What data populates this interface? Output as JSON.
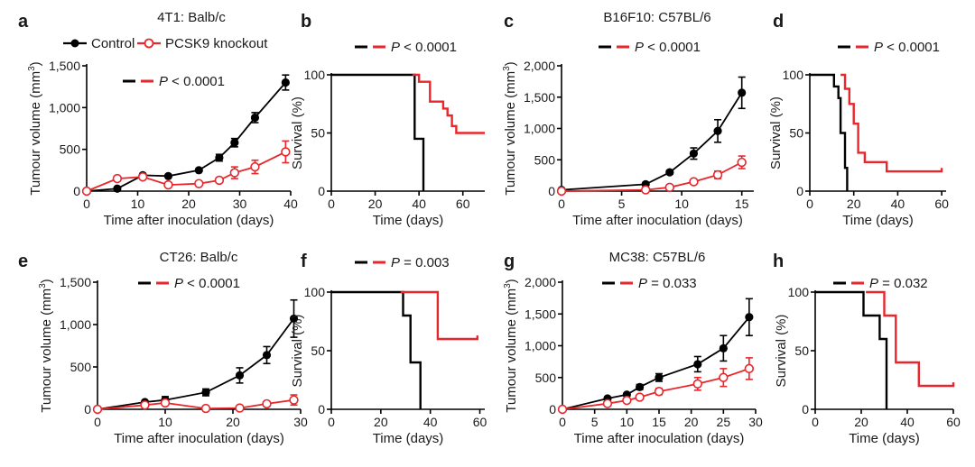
{
  "colors": {
    "control": "#000000",
    "knockout": "#e8262b"
  },
  "legend": {
    "control": "Control",
    "knockout": "PCSK9 knockout"
  },
  "chart_data": [
    {
      "panel": "a",
      "type": "line",
      "kind": "growth",
      "title": "4T1: Balb/c",
      "xlabel": "Time after inoculation (days)",
      "ylabel_main": "Tumour volume (mm",
      "ylabel_sup": "3",
      "ylabel_close": ")",
      "pvalue": "P < 0.0001",
      "xlim": [
        0,
        40
      ],
      "ylim": [
        0,
        1500
      ],
      "xticks": [
        0,
        10,
        20,
        30,
        40
      ],
      "xticklabels": [
        "0",
        "10",
        "20",
        "30",
        "40"
      ],
      "yticks": [
        0,
        500,
        1000,
        1500
      ],
      "yticklabels": [
        "0",
        "500",
        "1,000",
        "1,500"
      ],
      "series": [
        {
          "name": "Control",
          "x": [
            0,
            6,
            11,
            16,
            22,
            26,
            29,
            33,
            39
          ],
          "y": [
            0,
            30,
            190,
            180,
            250,
            400,
            580,
            880,
            1300
          ],
          "err": [
            0,
            0,
            10,
            10,
            15,
            40,
            50,
            60,
            90
          ]
        },
        {
          "name": "PCSK9 knockout",
          "x": [
            0,
            6,
            11,
            16,
            22,
            26,
            29,
            33,
            39
          ],
          "y": [
            0,
            150,
            170,
            75,
            90,
            130,
            220,
            290,
            470
          ],
          "err": [
            0,
            0,
            0,
            0,
            0,
            20,
            70,
            80,
            130
          ]
        }
      ]
    },
    {
      "panel": "b",
      "type": "line",
      "kind": "survival",
      "title": "",
      "xlabel": "Time (days)",
      "ylabel_main": "Survival (%)",
      "ylabel_sup": "",
      "ylabel_close": "",
      "pvalue": "P < 0.0001",
      "xlim": [
        0,
        70
      ],
      "ylim": [
        0,
        100
      ],
      "xticks": [
        0,
        20,
        40,
        60
      ],
      "xticklabels": [
        "0",
        "20",
        "40",
        "60"
      ],
      "yticks": [
        0,
        50,
        100
      ],
      "yticklabels": [
        "0",
        "50",
        "100"
      ],
      "series": [
        {
          "name": "Control",
          "x": [
            0,
            38,
            38,
            42,
            42
          ],
          "y": [
            100,
            100,
            45,
            45,
            0
          ]
        },
        {
          "name": "PCSK9 knockout",
          "x": [
            37,
            40,
            40,
            45,
            45,
            51,
            51,
            53,
            53,
            55,
            55,
            57,
            57,
            70
          ],
          "y": [
            100,
            100,
            94,
            94,
            77,
            77,
            71,
            71,
            65,
            65,
            56,
            56,
            50,
            50
          ]
        }
      ]
    },
    {
      "panel": "c",
      "type": "line",
      "kind": "growth",
      "title": "B16F10: C57BL/6",
      "xlabel": "Time after inoculation (days)",
      "ylabel_main": "Tumour volume (mm",
      "ylabel_sup": "3",
      "ylabel_close": ")",
      "pvalue": "P < 0.0001",
      "xlim": [
        0,
        16
      ],
      "ylim": [
        0,
        2000
      ],
      "xticks": [
        0,
        5,
        10,
        15
      ],
      "xticklabels": [
        "0",
        "5",
        "10",
        "15"
      ],
      "yticks": [
        0,
        500,
        1000,
        1500,
        2000
      ],
      "yticklabels": [
        "0",
        "500",
        "1,000",
        "1,500",
        "2,000"
      ],
      "series": [
        {
          "name": "Control",
          "x": [
            0,
            7,
            9,
            11,
            13,
            15
          ],
          "y": [
            20,
            110,
            300,
            600,
            960,
            1570
          ],
          "err": [
            0,
            10,
            30,
            90,
            180,
            250
          ]
        },
        {
          "name": "PCSK9 knockout",
          "x": [
            0,
            7,
            9,
            11,
            13,
            15
          ],
          "y": [
            0,
            20,
            60,
            150,
            260,
            460
          ],
          "err": [
            0,
            0,
            10,
            30,
            60,
            100
          ]
        }
      ]
    },
    {
      "panel": "d",
      "type": "line",
      "kind": "survival",
      "title": "",
      "xlabel": "Time (days)",
      "ylabel_main": "Survival (%)",
      "ylabel_sup": "",
      "ylabel_close": "",
      "pvalue": "P < 0.0001",
      "xlim": [
        0,
        62
      ],
      "ylim": [
        0,
        100
      ],
      "xticks": [
        0,
        20,
        40,
        60
      ],
      "xticklabels": [
        "0",
        "20",
        "40",
        "60"
      ],
      "yticks": [
        0,
        50,
        100
      ],
      "yticklabels": [
        "0",
        "50",
        "100"
      ],
      "series": [
        {
          "name": "Control",
          "x": [
            0,
            11,
            11,
            13,
            13,
            14,
            14,
            16,
            16,
            17,
            17
          ],
          "y": [
            100,
            100,
            90,
            90,
            80,
            80,
            50,
            50,
            20,
            20,
            0
          ]
        },
        {
          "name": "PCSK9 knockout",
          "x": [
            14,
            16,
            16,
            18,
            18,
            20,
            20,
            22,
            22,
            25,
            25,
            35,
            35,
            60,
            60
          ],
          "y": [
            100,
            100,
            88,
            88,
            75,
            75,
            58,
            58,
            33,
            33,
            25,
            25,
            17,
            17,
            20
          ]
        }
      ]
    },
    {
      "panel": "e",
      "type": "line",
      "kind": "growth",
      "title": "CT26: Balb/c",
      "xlabel": "Time after inoculation (days)",
      "ylabel_main": "Tumour volume (mm",
      "ylabel_sup": "3",
      "ylabel_close": ")",
      "pvalue": "P < 0.0001",
      "xlim": [
        0,
        30
      ],
      "ylim": [
        0,
        1500
      ],
      "xticks": [
        0,
        10,
        20,
        30
      ],
      "xticklabels": [
        "0",
        "10",
        "20",
        "30"
      ],
      "yticks": [
        0,
        500,
        1000,
        1500
      ],
      "yticklabels": [
        "0",
        "500",
        "1,000",
        "1,500"
      ],
      "series": [
        {
          "name": "Control",
          "x": [
            0,
            7,
            10,
            16,
            21,
            25,
            29
          ],
          "y": [
            0,
            85,
            110,
            200,
            400,
            640,
            1070
          ],
          "err": [
            0,
            10,
            40,
            40,
            90,
            100,
            220
          ]
        },
        {
          "name": "PCSK9 knockout",
          "x": [
            0,
            7,
            10,
            16,
            21,
            25,
            29
          ],
          "y": [
            0,
            50,
            75,
            10,
            15,
            65,
            110
          ],
          "err": [
            0,
            0,
            20,
            0,
            0,
            10,
            60
          ]
        }
      ]
    },
    {
      "panel": "f",
      "type": "line",
      "kind": "survival",
      "title": "",
      "xlabel": "Time (days)",
      "ylabel_main": "Survival (%)",
      "ylabel_sup": "",
      "ylabel_close": "",
      "pvalue": "P = 0.003",
      "xlim": [
        0,
        62
      ],
      "ylim": [
        0,
        100
      ],
      "xticks": [
        0,
        20,
        40,
        60
      ],
      "xticklabels": [
        "0",
        "20",
        "40",
        "60"
      ],
      "yticks": [
        0,
        50,
        100
      ],
      "yticklabels": [
        "0",
        "50",
        "100"
      ],
      "series": [
        {
          "name": "Control",
          "x": [
            0,
            29,
            29,
            32,
            32,
            36,
            36
          ],
          "y": [
            100,
            100,
            80,
            80,
            40,
            40,
            0
          ]
        },
        {
          "name": "PCSK9 knockout",
          "x": [
            28,
            43,
            43,
            59,
            59
          ],
          "y": [
            100,
            100,
            60,
            60,
            63
          ]
        }
      ]
    },
    {
      "panel": "g",
      "type": "line",
      "kind": "growth",
      "title": "MC38: C57BL/6",
      "xlabel": "Time after inoculation (days)",
      "ylabel_main": "Tumour volume (mm",
      "ylabel_sup": "3",
      "ylabel_close": ")",
      "pvalue": "P = 0.033",
      "xlim": [
        0,
        30
      ],
      "ylim": [
        0,
        2000
      ],
      "xticks": [
        0,
        5,
        10,
        15,
        20,
        25,
        30
      ],
      "xticklabels": [
        "0",
        "5",
        "10",
        "15",
        "20",
        "25",
        "30"
      ],
      "yticks": [
        0,
        500,
        1000,
        1500,
        2000
      ],
      "yticklabels": [
        "0",
        "500",
        "1,000",
        "1,500",
        "2,000"
      ],
      "series": [
        {
          "name": "Control",
          "x": [
            0,
            7,
            10,
            12,
            15,
            21,
            25,
            29
          ],
          "y": [
            0,
            170,
            230,
            350,
            500,
            710,
            960,
            1450
          ],
          "err": [
            0,
            20,
            20,
            40,
            60,
            120,
            200,
            290
          ]
        },
        {
          "name": "PCSK9 knockout",
          "x": [
            0,
            7,
            10,
            12,
            15,
            21,
            25,
            29
          ],
          "y": [
            0,
            90,
            140,
            190,
            280,
            400,
            500,
            640
          ],
          "err": [
            0,
            0,
            20,
            30,
            50,
            100,
            140,
            170
          ]
        }
      ]
    },
    {
      "panel": "h",
      "type": "line",
      "kind": "survival",
      "title": "",
      "xlabel": "Time (days)",
      "ylabel_main": "Survival (%)",
      "ylabel_sup": "",
      "ylabel_close": "",
      "pvalue": "P = 0.032",
      "xlim": [
        0,
        60
      ],
      "ylim": [
        0,
        100
      ],
      "xticks": [
        0,
        20,
        40,
        60
      ],
      "xticklabels": [
        "0",
        "20",
        "40",
        "60"
      ],
      "yticks": [
        0,
        50,
        100
      ],
      "yticklabels": [
        "0",
        "50",
        "100"
      ],
      "series": [
        {
          "name": "Control",
          "x": [
            0,
            21,
            21,
            28,
            28,
            31,
            31
          ],
          "y": [
            100,
            100,
            80,
            80,
            60,
            60,
            0
          ]
        },
        {
          "name": "PCSK9 knockout",
          "x": [
            22,
            30,
            30,
            35,
            35,
            45,
            45,
            60,
            60
          ],
          "y": [
            100,
            100,
            80,
            80,
            40,
            40,
            20,
            20,
            23
          ]
        }
      ]
    }
  ]
}
